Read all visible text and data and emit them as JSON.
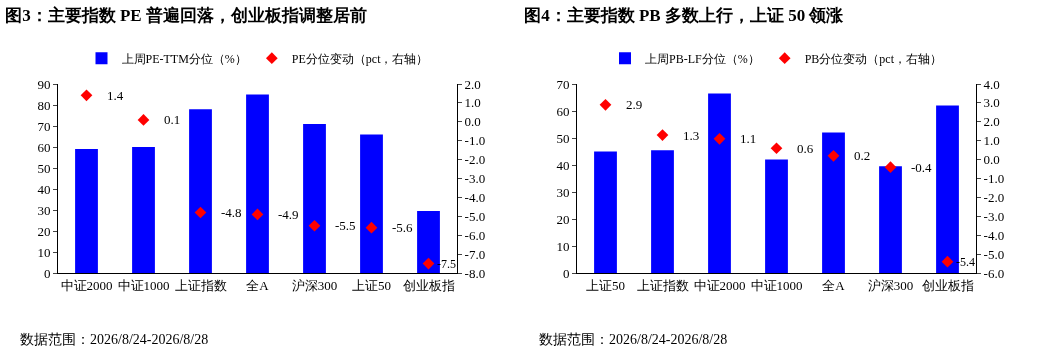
{
  "chart_data": [
    {
      "type": "bar",
      "title": "图3：主要指数 PE 普遍回落，创业板指调整居前",
      "categories": [
        "中证2000",
        "中证1000",
        "上证指数",
        "全A",
        "沪深300",
        "上证50",
        "创业板指"
      ],
      "legend": "top",
      "grid": false,
      "series": [
        {
          "name": "上周PE-TTM分位（%）",
          "color": "#0000ff",
          "values": [
            59,
            60,
            78,
            85,
            71,
            66,
            29.5
          ]
        },
        {
          "name": "PE分位变动（pct，右轴）",
          "type": "scatter",
          "marker": "diamond",
          "axis": "y2",
          "color": "#ff0000",
          "values": [
            1.4,
            0.1,
            -4.8,
            -4.9,
            -5.5,
            -5.6,
            -7.5
          ],
          "value_labels": [
            "1.4",
            "0.1",
            "-4.8",
            "-4.9",
            "-5.5",
            "-5.6",
            "-7.5"
          ]
        }
      ],
      "ylim": [
        0,
        90
      ],
      "yticks": [
        0,
        10,
        20,
        30,
        40,
        50,
        60,
        70,
        80,
        90
      ],
      "y2lim": [
        -8,
        2
      ],
      "y2ticks": [
        {
          "value": -8,
          "label": "-8.0"
        },
        {
          "value": -7,
          "label": "-7.0"
        },
        {
          "value": -6,
          "label": "-6.0"
        },
        {
          "value": -5,
          "label": "-5.0"
        },
        {
          "value": -4,
          "label": "-4.0"
        },
        {
          "value": -3,
          "label": "-3.0"
        },
        {
          "value": -2,
          "label": "-2.0"
        },
        {
          "value": -1,
          "label": "-1.0"
        },
        {
          "value": 0,
          "label": "0.0"
        },
        {
          "value": 1,
          "label": "1.0"
        },
        {
          "value": 2,
          "label": "2.0"
        }
      ],
      "annotations": [
        "数据范围：2026/8/24-2026/8/28"
      ]
    },
    {
      "type": "bar",
      "title": "图4：主要指数 PB 多数上行，上证 50 领涨",
      "categories": [
        "上证50",
        "上证指数",
        "中证2000",
        "中证1000",
        "全A",
        "沪深300",
        "创业板指"
      ],
      "legend": "top",
      "grid": false,
      "series": [
        {
          "name": "上周PB-LF分位（%）",
          "color": "#0000ff",
          "values": [
            45,
            45.5,
            66.5,
            42,
            52,
            39.5,
            62
          ]
        },
        {
          "name": "PB分位变动（pct，右轴）",
          "type": "scatter",
          "marker": "diamond",
          "axis": "y2",
          "color": "#ff0000",
          "values": [
            2.9,
            1.3,
            1.1,
            0.6,
            0.2,
            -0.4,
            -5.4
          ],
          "value_labels": [
            "2.9",
            "1.3",
            "1.1",
            "0.6",
            "0.2",
            "-0.4",
            "-5.4"
          ]
        }
      ],
      "ylim": [
        0,
        70
      ],
      "yticks": [
        0,
        10,
        20,
        30,
        40,
        50,
        60,
        70
      ],
      "y2lim": [
        -6,
        4
      ],
      "y2ticks": [
        {
          "value": -6,
          "label": "-6.0"
        },
        {
          "value": -5,
          "label": "-5.0"
        },
        {
          "value": -4,
          "label": "-4.0"
        },
        {
          "value": -3,
          "label": "-3.0"
        },
        {
          "value": -2,
          "label": "-2.0"
        },
        {
          "value": -1,
          "label": "-1.0"
        },
        {
          "value": 0,
          "label": "0.0"
        },
        {
          "value": 1,
          "label": "1.0"
        },
        {
          "value": 2,
          "label": "2.0"
        },
        {
          "value": 3,
          "label": "3.0"
        },
        {
          "value": 4,
          "label": "4.0"
        }
      ],
      "annotations": [
        "数据范围：2026/8/24-2026/8/28"
      ]
    }
  ]
}
